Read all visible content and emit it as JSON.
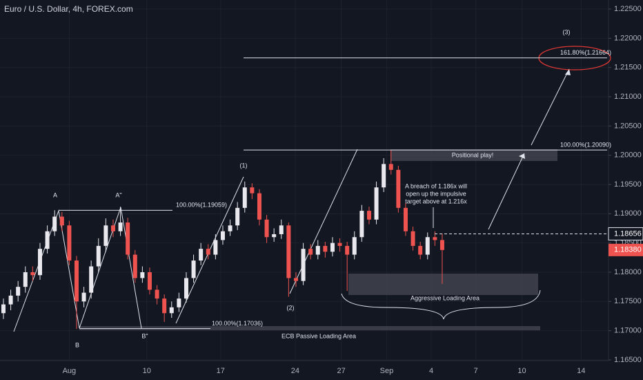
{
  "chart_data": {
    "type": "candlestick",
    "title": "Euro / U.S. Dollar, 4h, FOREX.com",
    "up_color": "#e8e8ee",
    "down_color": "#ef5350",
    "xlim": [
      -0.47,
      82.74
    ],
    "xticks": [
      {
        "value": 9,
        "label": "Aug"
      },
      {
        "value": 19.6,
        "label": "10"
      },
      {
        "value": 29.7,
        "label": "17"
      },
      {
        "value": 39.9,
        "label": "24"
      },
      {
        "value": 46.2,
        "label": "27"
      },
      {
        "value": 52.4,
        "label": "Sep"
      },
      {
        "value": 58.5,
        "label": "4"
      },
      {
        "value": 64.6,
        "label": "7"
      },
      {
        "value": 70.9,
        "label": "10"
      },
      {
        "value": 79,
        "label": "14"
      }
    ],
    "ylim": [
      1.16488,
      1.22654
    ],
    "yticks": [
      {
        "value": 1.225,
        "label": "1.22500"
      },
      {
        "value": 1.22,
        "label": "1.22000"
      },
      {
        "value": 1.215,
        "label": "1.21500"
      },
      {
        "value": 1.21,
        "label": "1.21000"
      },
      {
        "value": 1.205,
        "label": "1.20500"
      },
      {
        "value": 1.2,
        "label": "1.20000"
      },
      {
        "value": 1.195,
        "label": "1.19500"
      },
      {
        "value": 1.19,
        "label": "1.19000"
      },
      {
        "value": 1.185,
        "label": "1.18500"
      },
      {
        "value": 1.18,
        "label": "1.18000"
      },
      {
        "value": 1.175,
        "label": "1.17500"
      },
      {
        "value": 1.17,
        "label": "1.17000"
      },
      {
        "value": 1.165,
        "label": "1.16500"
      }
    ],
    "open": [
      1.173,
      1.1745,
      1.176,
      1.1775,
      1.18,
      1.1795,
      1.184,
      1.187,
      1.1895,
      1.188,
      1.182,
      1.175,
      1.1765,
      1.181,
      1.1845,
      1.188,
      1.187,
      1.1885,
      1.183,
      1.179,
      1.18,
      1.177,
      1.1755,
      1.173,
      1.174,
      1.1755,
      1.179,
      1.182,
      1.184,
      1.183,
      1.1855,
      1.187,
      1.188,
      1.191,
      1.1945,
      1.1935,
      1.189,
      1.186,
      1.1865,
      1.188,
      1.179,
      1.1785,
      1.184,
      1.183,
      1.1845,
      1.1835,
      1.185,
      1.1845,
      1.183,
      1.186,
      1.1905,
      1.189,
      1.1945,
      1.1985,
      1.1975,
      1.191,
      1.187,
      1.1845,
      1.183,
      1.186,
      1.1855
    ],
    "high": [
      1.1755,
      1.177,
      1.1785,
      1.181,
      1.181,
      1.185,
      1.188,
      1.1906,
      1.1903,
      1.1888,
      1.1828,
      1.1775,
      1.182,
      1.1858,
      1.1892,
      1.189,
      1.1912,
      1.1893,
      1.1838,
      1.181,
      1.1808,
      1.1778,
      1.1762,
      1.175,
      1.1765,
      1.18,
      1.183,
      1.185,
      1.1848,
      1.1865,
      1.188,
      1.189,
      1.192,
      1.1955,
      1.1952,
      1.1942,
      1.1898,
      1.1875,
      1.189,
      1.1885,
      1.18,
      1.185,
      1.1848,
      1.1855,
      1.1852,
      1.186,
      1.1858,
      1.1852,
      1.187,
      1.1915,
      1.1912,
      1.1955,
      1.1995,
      1.2009,
      1.1982,
      1.1918,
      1.1878,
      1.1852,
      1.1868,
      1.187,
      1.1866
    ],
    "low": [
      1.172,
      1.1735,
      1.175,
      1.1765,
      1.1785,
      1.1787,
      1.1832,
      1.1862,
      1.187,
      1.1812,
      1.1703,
      1.174,
      1.1755,
      1.18,
      1.1835,
      1.186,
      1.1862,
      1.1822,
      1.1782,
      1.1782,
      1.1762,
      1.1745,
      1.1715,
      1.1722,
      1.1732,
      1.1748,
      1.1782,
      1.1812,
      1.1822,
      1.1822,
      1.1847,
      1.1862,
      1.1872,
      1.1902,
      1.1925,
      1.188,
      1.185,
      1.1852,
      1.1857,
      1.1758,
      1.1775,
      1.1778,
      1.1822,
      1.1822,
      1.1825,
      1.1827,
      1.1835,
      1.1768,
      1.1822,
      1.1852,
      1.1882,
      1.1882,
      1.1937,
      1.1967,
      1.1902,
      1.1862,
      1.1837,
      1.1822,
      1.1822,
      1.1845,
      1.178
    ],
    "close": [
      1.1745,
      1.176,
      1.1775,
      1.18,
      1.1795,
      1.184,
      1.187,
      1.1895,
      1.188,
      1.182,
      1.175,
      1.1765,
      1.181,
      1.1845,
      1.188,
      1.187,
      1.1885,
      1.183,
      1.179,
      1.18,
      1.177,
      1.1755,
      1.173,
      1.174,
      1.1755,
      1.179,
      1.182,
      1.184,
      1.183,
      1.1855,
      1.187,
      1.188,
      1.191,
      1.1945,
      1.1935,
      1.189,
      1.186,
      1.1865,
      1.188,
      1.179,
      1.1785,
      1.184,
      1.183,
      1.1845,
      1.1835,
      1.185,
      1.1845,
      1.183,
      1.186,
      1.1905,
      1.189,
      1.1945,
      1.1985,
      1.1975,
      1.191,
      1.187,
      1.1845,
      1.183,
      1.186,
      1.1855,
      1.1838
    ],
    "levels": [
      {
        "label": "100.00%(1.19059)",
        "value": 1.19059
      },
      {
        "label": "100.00%(1.17036)",
        "value": 1.17036
      },
      {
        "label": "100.00%(1.20090)",
        "value": 1.2009
      },
      {
        "label": "161.80%(1.21664)",
        "value": 1.21664
      }
    ],
    "marker_price": {
      "value": 1.18656,
      "label": "1.18656"
    },
    "last_price": {
      "value": 1.1838,
      "label": "1.18380"
    },
    "annotations": [
      "A",
      "A\"",
      "B",
      "B\"",
      "(1)",
      "(2)",
      "(3)",
      "Positional play!",
      "A breach of 1.186x will",
      "open up the impulsive",
      "target above at 1.216x",
      "Aggressive Loading Area",
      "ECB Passive Loading Area"
    ]
  }
}
